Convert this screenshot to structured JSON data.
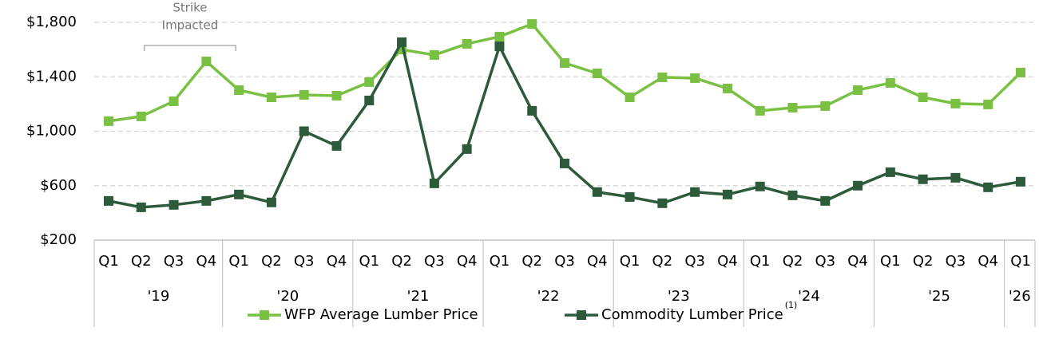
{
  "chart_data": {
    "type": "line",
    "categories": [
      "Q1",
      "Q2",
      "Q3",
      "Q4",
      "Q1",
      "Q2",
      "Q3",
      "Q4",
      "Q1",
      "Q2",
      "Q3",
      "Q4",
      "Q1",
      "Q2",
      "Q3",
      "Q4",
      "Q1",
      "Q2",
      "Q3",
      "Q4",
      "Q1",
      "Q2",
      "Q3",
      "Q4",
      "Q1",
      "Q2",
      "Q3",
      "Q4",
      "Q1"
    ],
    "year_groups": [
      {
        "label": "'19",
        "count": 4
      },
      {
        "label": "'20",
        "count": 4
      },
      {
        "label": "'21",
        "count": 4
      },
      {
        "label": "'22",
        "count": 4
      },
      {
        "label": "'23",
        "count": 4
      },
      {
        "label": "'24",
        "count": 4
      },
      {
        "label": "'25",
        "count": 4
      },
      {
        "label": "'26",
        "count": 1
      }
    ],
    "series": [
      {
        "name": "WFP Average Lumber Price",
        "color": "#7ac143",
        "values": [
          1074,
          1109,
          1220,
          1513,
          1302,
          1249,
          1267,
          1261,
          1361,
          1600,
          1560,
          1642,
          1695,
          1788,
          1501,
          1425,
          1249,
          1396,
          1390,
          1314,
          1150,
          1173,
          1185,
          1302,
          1355,
          1249,
          1203,
          1197,
          1431
        ]
      },
      {
        "name": "Commodity Lumber Price",
        "color": "#2c5a3a",
        "footnote": "(1)",
        "values": [
          488,
          441,
          459,
          488,
          535,
          477,
          1000,
          892,
          1226,
          1654,
          617,
          869,
          1624,
          1150,
          763,
          553,
          517,
          471,
          553,
          535,
          594,
          529,
          488,
          600,
          699,
          647,
          658,
          588,
          629
        ]
      }
    ],
    "annotation": {
      "text": [
        "Strike",
        "Impacted"
      ],
      "from": 1,
      "to": 4
    },
    "ylim": [
      200,
      1800
    ],
    "yticks": [
      {
        "value": 200,
        "label": "$200"
      },
      {
        "value": 600,
        "label": "$600"
      },
      {
        "value": 1000,
        "label": "$1,000"
      },
      {
        "value": 1400,
        "label": "$1,400"
      },
      {
        "value": 1800,
        "label": "$1,800"
      }
    ],
    "grid": true
  }
}
